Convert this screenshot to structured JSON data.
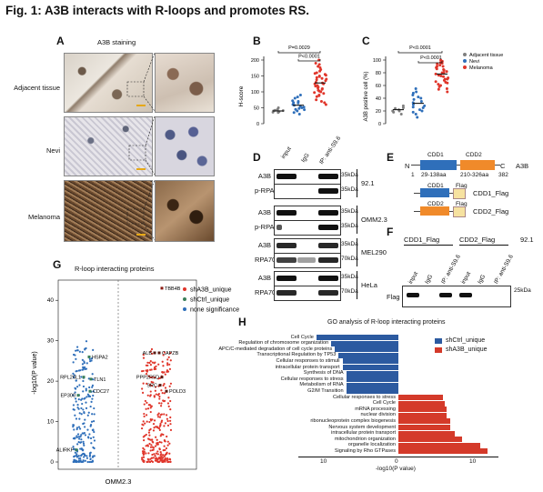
{
  "figure": {
    "title": "Fig. 1: A3B interacts with R-loops and promotes RS.",
    "panels": [
      "A",
      "B",
      "C",
      "D",
      "E",
      "F",
      "G",
      "H"
    ]
  },
  "panel_a": {
    "header": "A3B staining",
    "rows": [
      "Adjacent tissue",
      "Nevi",
      "Melanoma"
    ]
  },
  "panel_b": {
    "ylabel": "H-score",
    "yticks": [
      "0",
      "50",
      "100",
      "150",
      "200"
    ],
    "p_top": "P=0.0029",
    "p_bottom": "P<0.0001",
    "groups": [
      {
        "name": "Adjacent tissue",
        "color": "#7f7f7f",
        "values": [
          35,
          38,
          40,
          42,
          45,
          50,
          36,
          41
        ]
      },
      {
        "name": "Nevi",
        "color": "#2f6fba",
        "values": [
          30,
          40,
          45,
          50,
          55,
          60,
          70,
          80,
          90,
          35,
          48,
          65,
          58,
          72,
          52,
          44,
          66,
          84
        ]
      },
      {
        "name": "Melanoma",
        "color": "#e0352a",
        "values": [
          60,
          75,
          90,
          100,
          110,
          120,
          130,
          140,
          150,
          160,
          170,
          180,
          190,
          95,
          105,
          115,
          125,
          135,
          145,
          155,
          165,
          85,
          70,
          200,
          125,
          108,
          118,
          138,
          148,
          158,
          98,
          88,
          128,
          142,
          152,
          112,
          102,
          176,
          186,
          66
        ]
      }
    ],
    "means": [
      40,
      58,
      128
    ]
  },
  "panel_c": {
    "ylabel": "A3B positive cell (%)",
    "yticks": [
      "0",
      "20",
      "40",
      "60",
      "80",
      "100"
    ],
    "p_top": "P<0.0001",
    "p_bottom": "P<0.0001",
    "legend": [
      "Adjacent tissue",
      "Nevi",
      "Melanoma"
    ],
    "legend_colors": [
      "#7f7f7f",
      "#2f6fba",
      "#e0352a"
    ],
    "groups": [
      {
        "values": [
          15,
          20,
          25,
          22,
          18,
          28,
          24,
          20
        ]
      },
      {
        "values": [
          10,
          15,
          20,
          25,
          30,
          35,
          40,
          45,
          50,
          55,
          22,
          28,
          33,
          38,
          18,
          42,
          48,
          26
        ]
      },
      {
        "values": [
          50,
          55,
          60,
          65,
          70,
          75,
          80,
          85,
          90,
          95,
          100,
          58,
          62,
          68,
          72,
          78,
          82,
          88,
          92,
          96,
          64,
          74,
          84,
          66,
          76,
          86,
          70,
          80,
          90,
          98,
          54,
          94
        ]
      }
    ],
    "means": [
      22,
      32,
      78
    ]
  },
  "panel_d": {
    "lanes": [
      "input",
      "IgG",
      "IP: anti-S9.6"
    ],
    "blocks": [
      {
        "labels": [
          "A3B",
          "p-RPA32"
        ],
        "mw": [
          "35kDa",
          "35kDa"
        ],
        "cell": "92.1"
      },
      {
        "labels": [
          "A3B",
          "p-RPA32"
        ],
        "mw": [
          "35kDa",
          "35kDa"
        ],
        "cell": "OMM2.3"
      },
      {
        "labels": [
          "A3B",
          "RPA70"
        ],
        "mw": [
          "35kDa",
          "70kDa"
        ],
        "cell": "MEL290"
      },
      {
        "labels": [
          "A3B",
          "RPA70"
        ],
        "mw": [
          "35kDa",
          "70kDa"
        ],
        "cell": "HeLa"
      }
    ]
  },
  "panel_e": {
    "n": "N",
    "c": "C",
    "protein": "A3B",
    "start": "1",
    "end": "382",
    "cdd1": "CDD1",
    "cdd1_range": "29-138aa",
    "cdd2": "CDD2",
    "cdd2_range": "210-326aa",
    "flag": "Flag",
    "construct1": "CDD1_Flag",
    "construct2": "CDD2_Flag"
  },
  "panel_f": {
    "group1": "CDD1_Flag",
    "group2": "CDD2_Flag",
    "cell": "92.1",
    "lanes": [
      "input",
      "IgG",
      "IP: anti-S9.6",
      "input",
      "IgG",
      "IP: anti-S9.6"
    ],
    "row_label": "Flag",
    "mw": "25kDa"
  },
  "panel_g": {
    "title": "R-loop interacting proteins",
    "ylabel": "-log10(P value)",
    "yticks": [
      "0",
      "10",
      "20",
      "30",
      "40"
    ],
    "xlabel": "OMM2.3",
    "legend": [
      "shA3B_unique",
      "shCtrl_unique",
      "none significance"
    ],
    "legend_colors": [
      "#e0352a",
      "#3a7f5a",
      "#2f6fba"
    ],
    "left_labels": [
      "HSPA2",
      "RPL26L1",
      "TLN1",
      "CDC27",
      "EP300",
      "ALIRKF"
    ],
    "right_labels": [
      "TBB4B",
      "ALB",
      "CAPZB",
      "PPP2R5D",
      "SRC",
      "POLD3"
    ]
  },
  "panel_h": {
    "title": "GO analysis of R-loop interacting proteins",
    "xlabel": "-log10(P value)",
    "xticks": [
      "10",
      "0",
      "10"
    ],
    "legend": [
      "shCtrl_unique",
      "shA3B_unique"
    ],
    "blue_terms": [
      {
        "term": "Cell Cycle",
        "value": 11
      },
      {
        "term": "Regulation of chromosome organization",
        "value": 9
      },
      {
        "term": "APC/C-mediated degradation of cell cycle proteins",
        "value": 8.5
      },
      {
        "term": "Transcriptional Regulation by TP53",
        "value": 8
      },
      {
        "term": "Cellular responses to stimuli",
        "value": 7.5
      },
      {
        "term": "intracellular protein transport",
        "value": 7.5
      },
      {
        "term": "Synthesis of DNA",
        "value": 7
      },
      {
        "term": "Cellular responses to stress",
        "value": 7
      },
      {
        "term": "Metabolism of RNA",
        "value": 7
      },
      {
        "term": "G2/M Transition",
        "value": 7
      }
    ],
    "red_terms": [
      {
        "term": "Cellular responses to stress",
        "value": 6
      },
      {
        "term": "Cell Cycle",
        "value": 6.2
      },
      {
        "term": "mRNA processing",
        "value": 6.5
      },
      {
        "term": "nuclear division",
        "value": 6.5
      },
      {
        "term": "ribonucleoprotein complex biogenesis",
        "value": 7
      },
      {
        "term": "Nervous system development",
        "value": 7
      },
      {
        "term": "intracellular protein transport",
        "value": 7.5
      },
      {
        "term": "mitochondrion organization",
        "value": 8.5
      },
      {
        "term": "organelle localization",
        "value": 11
      },
      {
        "term": "Signaling by Rho GTPases",
        "value": 12
      }
    ]
  }
}
